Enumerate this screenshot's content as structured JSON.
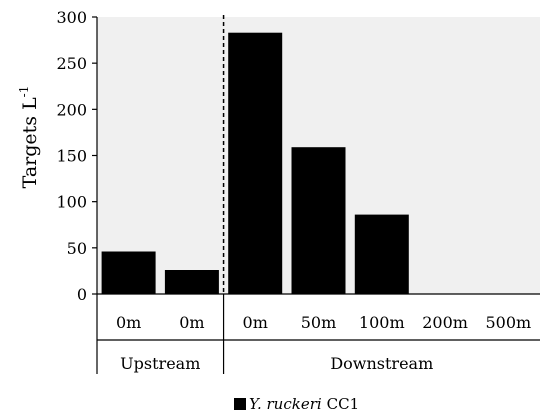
{
  "chart_data": {
    "type": "bar",
    "categories": [
      "0m",
      "0m",
      "0m",
      "50m",
      "100m",
      "200m",
      "500m"
    ],
    "groups": [
      {
        "label": "Upstream",
        "category_count": 2
      },
      {
        "label": "Downstream",
        "category_count": 5
      }
    ],
    "series": [
      {
        "name": "CC1",
        "name_italic": "Y. ruckeri",
        "values": [
          46,
          26,
          283,
          159,
          86,
          0,
          0
        ],
        "color": "#000000"
      }
    ],
    "ylabel": "Targets L",
    "ylabel_superscript": "-1",
    "ylim": [
      0,
      300
    ],
    "yticks": [
      0,
      50,
      100,
      150,
      200,
      250,
      300
    ],
    "plot_background": "#f0f0f0",
    "grid": false,
    "divider_after_category": 2,
    "legend_position": "bottom-center"
  }
}
